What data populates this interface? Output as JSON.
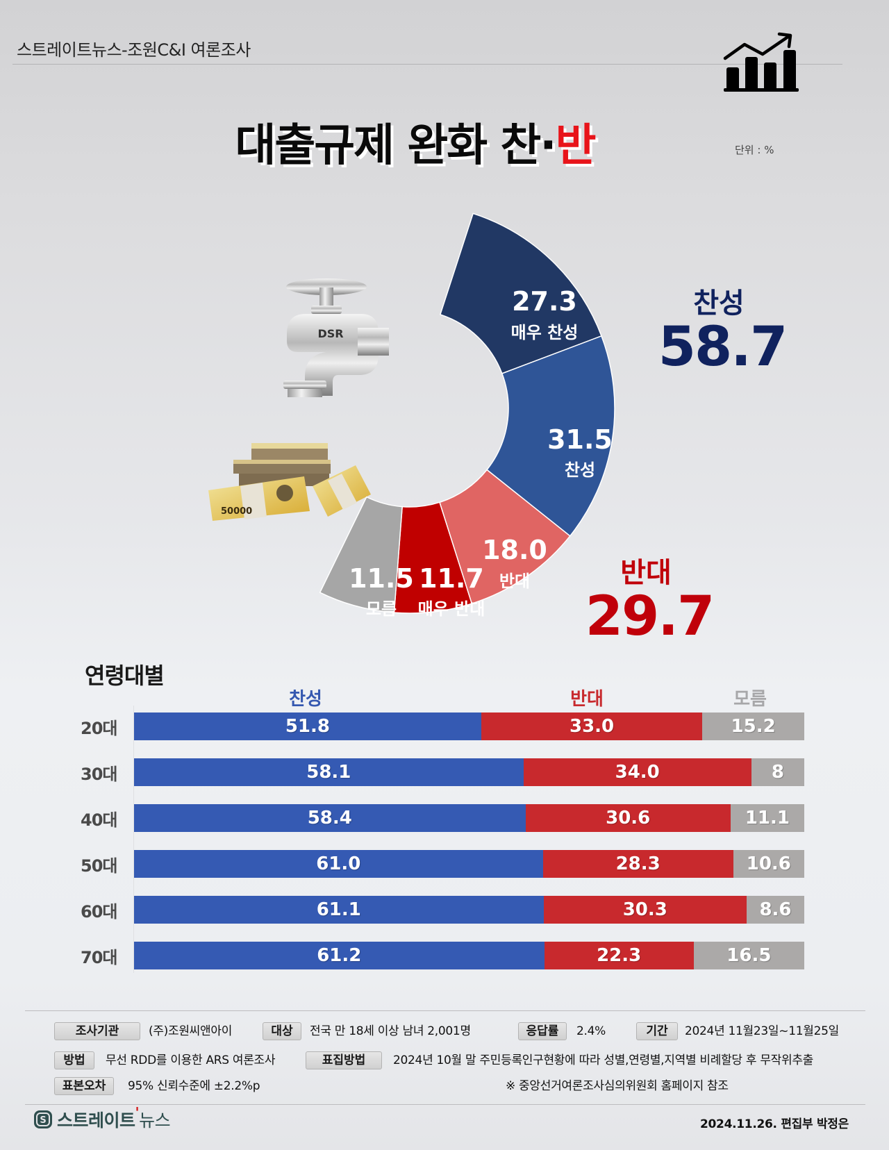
{
  "header": {
    "source": "스트레이트뉴스-조원C&I 여론조사",
    "title_main": "대출규제 완화 찬·",
    "title_red": "반",
    "unit": "단위 : %",
    "icon": "chart-growth-icon"
  },
  "illustration": {
    "faucet_label": "DSR",
    "money_label": "50000"
  },
  "summary": {
    "for_label": "찬성",
    "for_value": "58.7",
    "against_label": "반대",
    "against_value": "29.7"
  },
  "donut": {
    "segments": [
      {
        "label": "매우 찬성",
        "value": "27.3",
        "color": "#213864"
      },
      {
        "label": "찬성",
        "value": "31.5",
        "color": "#2f5597"
      },
      {
        "label": "반대",
        "value": "18.0",
        "color": "#e06563"
      },
      {
        "label": "매우 반대",
        "value": "11.7",
        "color": "#c00000"
      },
      {
        "label": "모름",
        "value": "11.5",
        "color": "#a6a6a6"
      }
    ]
  },
  "age": {
    "title": "연령대별",
    "columns": {
      "for": "찬성",
      "against": "반대",
      "unknown": "모름"
    },
    "rows": [
      {
        "age": "20대",
        "for": "51.8",
        "against": "33.0",
        "unknown": "15.2"
      },
      {
        "age": "30대",
        "for": "58.1",
        "against": "34.0",
        "unknown": "8"
      },
      {
        "age": "40대",
        "for": "58.4",
        "against": "30.6",
        "unknown": "11.1"
      },
      {
        "age": "50대",
        "for": "61.0",
        "against": "28.3",
        "unknown": "10.6"
      },
      {
        "age": "60대",
        "for": "61.1",
        "against": "30.3",
        "unknown": "8.6"
      },
      {
        "age": "70대",
        "for": "61.2",
        "against": "22.3",
        "unknown": "16.5"
      }
    ]
  },
  "methodology": {
    "agency_tag": "조사기관",
    "agency": "(주)조원씨앤아이",
    "target_tag": "대상",
    "target": "전국 만 18세 이상 남녀 2,001명",
    "response_tag": "응답률",
    "response": "2.4%",
    "period_tag": "기간",
    "period": "2024년 11월23일~11월25일",
    "method_tag": "방법",
    "method": "무선 RDD를 이용한 ARS 여론조사",
    "sampling_tag": "표집방법",
    "sampling": "2024년 10월 말 주민등록인구현황에 따라 성별,연령별,지역별 비례할당 후 무작위추출",
    "error_tag": "표본오차",
    "error": "95% 신뢰수준에 ±2.2%p",
    "note": "※ 중앙선거여론조사심의위원회 홈페이지 참조"
  },
  "footer": {
    "logo_bold": "스트레이트",
    "logo_tick": "'",
    "logo_light": "뉴스",
    "credit": "2024.11.26. 편집부 박정은"
  },
  "colors": {
    "for_dark": "#213864",
    "for": "#2f5597",
    "for_bar": "#355ab3",
    "against_light": "#e06563",
    "against": "#c00000",
    "against_bar": "#c8292d",
    "unknown": "#a6a6a6",
    "title_red": "#e8141a"
  },
  "chart_data": [
    {
      "type": "pie",
      "title": "대출규제 완화 찬·반",
      "unit": "%",
      "categories": [
        "매우 찬성",
        "찬성",
        "반대",
        "매우 반대",
        "모름"
      ],
      "values": [
        27.3,
        31.5,
        18.0,
        11.7,
        11.5
      ],
      "totals": {
        "찬성": 58.7,
        "반대": 29.7
      },
      "style": "half-donut"
    },
    {
      "type": "bar",
      "orientation": "horizontal-stacked",
      "title": "연령대별",
      "categories": [
        "20대",
        "30대",
        "40대",
        "50대",
        "60대",
        "70대"
      ],
      "series": [
        {
          "name": "찬성",
          "values": [
            51.8,
            58.1,
            58.4,
            61.0,
            61.1,
            61.2
          ]
        },
        {
          "name": "반대",
          "values": [
            33.0,
            34.0,
            30.6,
            28.3,
            30.3,
            22.3
          ]
        },
        {
          "name": "모름",
          "values": [
            15.2,
            8,
            11.1,
            10.6,
            8.6,
            16.5
          ]
        }
      ],
      "legend_position": "top"
    }
  ]
}
